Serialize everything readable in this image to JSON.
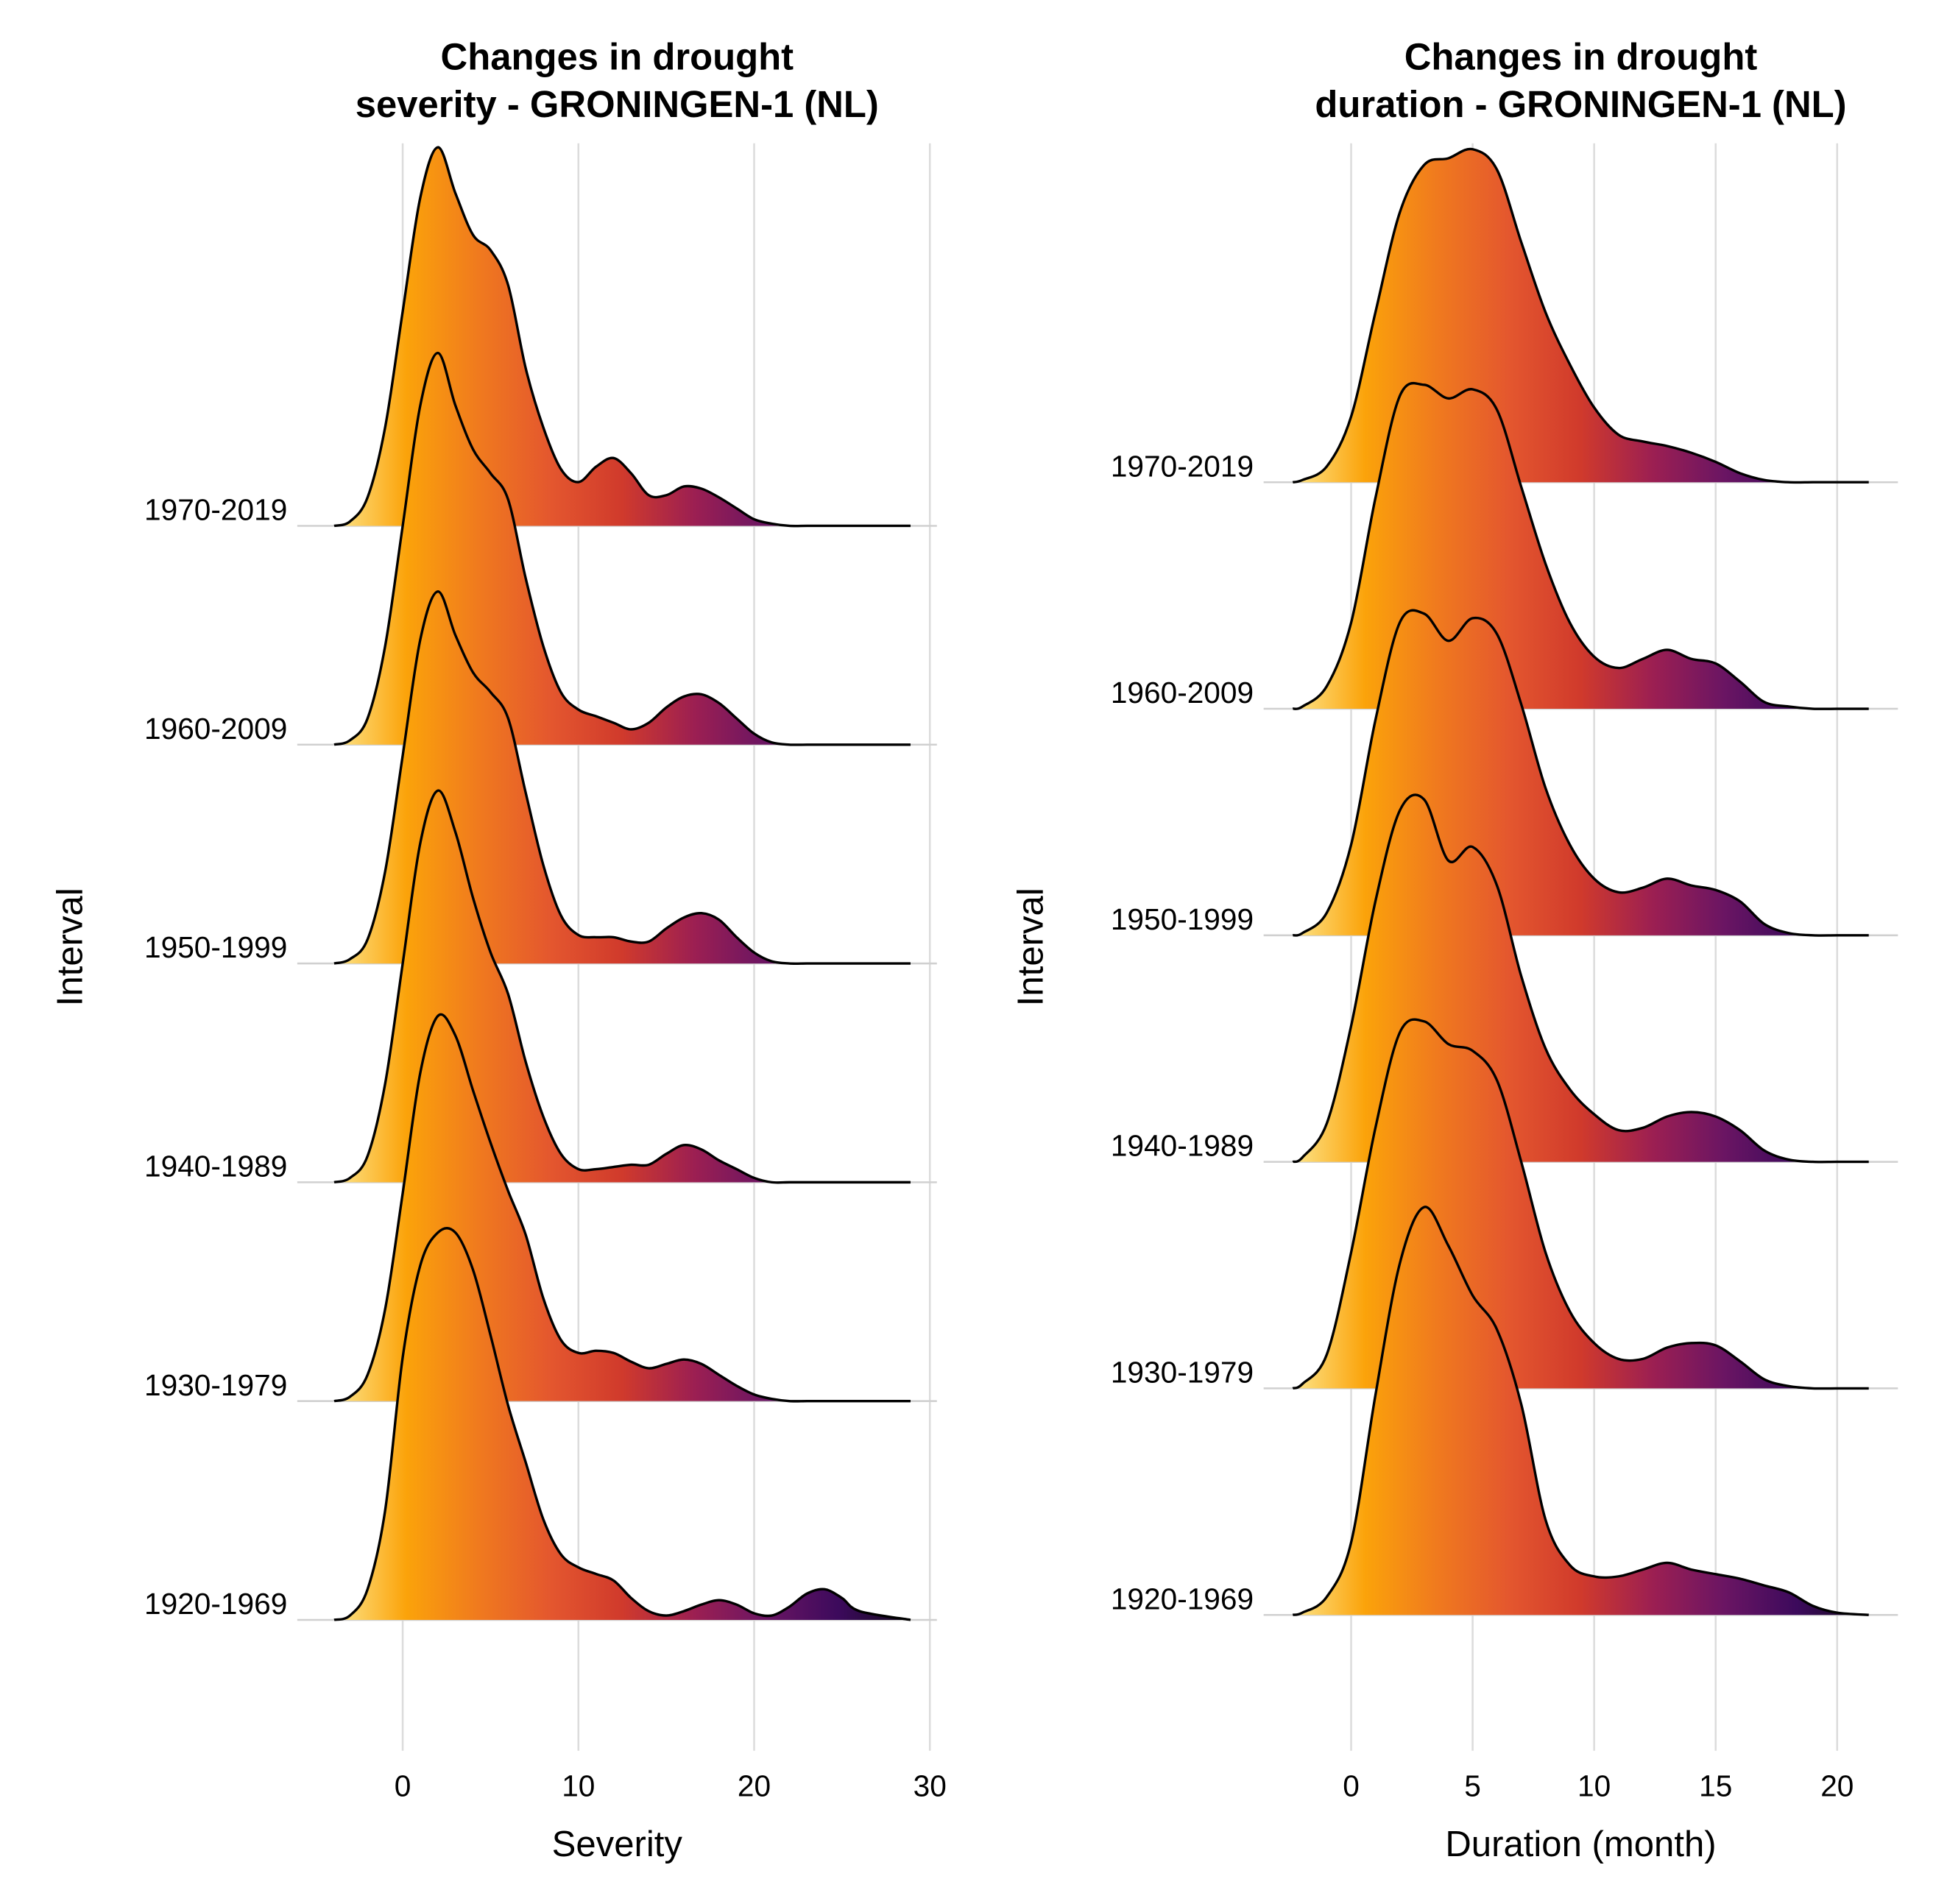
{
  "chart_data": [
    {
      "type": "ridgeline",
      "title": [
        "Changes in drought",
        "severity - GRONINGEN-1 (NL)"
      ],
      "xlabel": "Severity",
      "ylabel": "Interval",
      "x": [
        -3.9,
        -3,
        -2,
        -1,
        0,
        1,
        2,
        3,
        4,
        5,
        6,
        7,
        8,
        9,
        10,
        11,
        12,
        13,
        14,
        15,
        16,
        17,
        18,
        19,
        20,
        21,
        22,
        23,
        24,
        25,
        26,
        28.9
      ],
      "series": [
        {
          "name": "1920-1969",
          "values": [
            0,
            0.02,
            0.14,
            0.5,
            1.2,
            1.62,
            1.77,
            1.77,
            1.6,
            1.3,
            0.98,
            0.72,
            0.46,
            0.3,
            0.24,
            0.21,
            0.18,
            0.1,
            0.04,
            0.02,
            0.04,
            0.07,
            0.09,
            0.07,
            0.03,
            0.02,
            0.06,
            0.12,
            0.14,
            0.1,
            0.04,
            0
          ]
        },
        {
          "name": "1930-1979",
          "values": [
            0,
            0.02,
            0.12,
            0.42,
            0.95,
            1.5,
            1.76,
            1.67,
            1.42,
            1.18,
            0.96,
            0.76,
            0.47,
            0.28,
            0.22,
            0.23,
            0.22,
            0.18,
            0.15,
            0.17,
            0.19,
            0.17,
            0.12,
            0.07,
            0.03,
            0.01,
            0,
            0,
            0,
            0,
            0,
            0
          ]
        },
        {
          "name": "1940-1989",
          "values": [
            0,
            0.02,
            0.12,
            0.45,
            1.0,
            1.55,
            1.79,
            1.6,
            1.3,
            1.05,
            0.86,
            0.55,
            0.3,
            0.13,
            0.06,
            0.06,
            0.07,
            0.08,
            0.08,
            0.13,
            0.17,
            0.15,
            0.1,
            0.06,
            0.02,
            0,
            0,
            0,
            0,
            0,
            0,
            0
          ]
        },
        {
          "name": "1950-1999",
          "values": [
            0,
            0.02,
            0.11,
            0.42,
            0.95,
            1.48,
            1.7,
            1.5,
            1.33,
            1.24,
            1.12,
            0.78,
            0.45,
            0.22,
            0.13,
            0.12,
            0.12,
            0.1,
            0.1,
            0.16,
            0.21,
            0.23,
            0.2,
            0.12,
            0.05,
            0.01,
            0,
            0,
            0,
            0,
            0,
            0
          ]
        },
        {
          "name": "1960-2009",
          "values": [
            0,
            0.02,
            0.12,
            0.45,
            1.0,
            1.55,
            1.79,
            1.55,
            1.35,
            1.24,
            1.12,
            0.76,
            0.45,
            0.24,
            0.16,
            0.13,
            0.1,
            0.07,
            0.1,
            0.17,
            0.22,
            0.23,
            0.19,
            0.12,
            0.05,
            0.01,
            0,
            0,
            0,
            0,
            0,
            0
          ]
        },
        {
          "name": "1970-2019",
          "values": [
            0,
            0.02,
            0.13,
            0.45,
            0.98,
            1.5,
            1.73,
            1.52,
            1.33,
            1.26,
            1.1,
            0.72,
            0.45,
            0.26,
            0.2,
            0.27,
            0.31,
            0.24,
            0.14,
            0.14,
            0.18,
            0.17,
            0.13,
            0.08,
            0.03,
            0.01,
            0,
            0,
            0,
            0,
            0,
            0
          ]
        }
      ],
      "xlim": [
        -6,
        30.4
      ],
      "xticks": [
        0,
        10,
        20,
        30
      ],
      "grid": true,
      "colors": [
        "#fde68c",
        "#fba30a",
        "#f07a1e",
        "#e4572e",
        "#d03a2c",
        "#9c1f52",
        "#6a1563",
        "#3c0a5c",
        "#120a1a"
      ]
    },
    {
      "type": "ridgeline",
      "title": [
        "Changes in drought",
        "duration - GRONINGEN-1 (NL)"
      ],
      "xlabel": "Duration (month)",
      "ylabel": "Interval",
      "x": [
        -2.4,
        -2,
        -1,
        0,
        1,
        2,
        3,
        4,
        5,
        6,
        7,
        8,
        9,
        10,
        11,
        12,
        13,
        14,
        15,
        16,
        17,
        18,
        19,
        20,
        21.3
      ],
      "series": [
        {
          "name": "1920-1969",
          "values": [
            0,
            0.01,
            0.08,
            0.32,
            0.97,
            1.55,
            1.8,
            1.63,
            1.41,
            1.26,
            0.93,
            0.42,
            0.22,
            0.17,
            0.17,
            0.2,
            0.23,
            0.2,
            0.18,
            0.16,
            0.13,
            0.1,
            0.04,
            0.01,
            0
          ]
        },
        {
          "name": "1930-1979",
          "values": [
            0,
            0.02,
            0.15,
            0.6,
            1.15,
            1.57,
            1.62,
            1.52,
            1.49,
            1.36,
            1.0,
            0.6,
            0.34,
            0.2,
            0.13,
            0.13,
            0.18,
            0.2,
            0.19,
            0.12,
            0.04,
            0.01,
            0,
            0,
            0
          ]
        },
        {
          "name": "1940-1989",
          "values": [
            0,
            0.02,
            0.17,
            0.6,
            1.15,
            1.55,
            1.6,
            1.33,
            1.39,
            1.22,
            0.82,
            0.5,
            0.32,
            0.21,
            0.14,
            0.15,
            0.2,
            0.22,
            0.2,
            0.14,
            0.05,
            0.01,
            0,
            0,
            0
          ]
        },
        {
          "name": "1950-1999",
          "values": [
            0,
            0.01,
            0.1,
            0.4,
            0.95,
            1.38,
            1.42,
            1.3,
            1.4,
            1.33,
            1.02,
            0.65,
            0.4,
            0.25,
            0.19,
            0.21,
            0.25,
            0.22,
            0.2,
            0.15,
            0.05,
            0.01,
            0,
            0,
            0
          ]
        },
        {
          "name": "1960-2009",
          "values": [
            0,
            0.01,
            0.1,
            0.38,
            0.93,
            1.38,
            1.43,
            1.37,
            1.41,
            1.32,
            0.98,
            0.64,
            0.38,
            0.23,
            0.18,
            0.22,
            0.26,
            0.22,
            0.2,
            0.12,
            0.03,
            0.01,
            0,
            0,
            0
          ]
        },
        {
          "name": "1970-2019",
          "values": [
            0,
            0.01,
            0.07,
            0.29,
            0.75,
            1.19,
            1.4,
            1.43,
            1.47,
            1.38,
            1.06,
            0.75,
            0.52,
            0.33,
            0.21,
            0.18,
            0.16,
            0.13,
            0.09,
            0.04,
            0.01,
            0,
            0,
            0,
            0
          ]
        }
      ],
      "xlim": [
        -3.6,
        22.5
      ],
      "xticks": [
        0,
        5,
        10,
        15,
        20
      ],
      "grid": true,
      "colors": [
        "#fde68c",
        "#fba30a",
        "#f07a1e",
        "#e4572e",
        "#d03a2c",
        "#9c1f52",
        "#6a1563",
        "#3c0a5c",
        "#120a1a"
      ]
    }
  ]
}
